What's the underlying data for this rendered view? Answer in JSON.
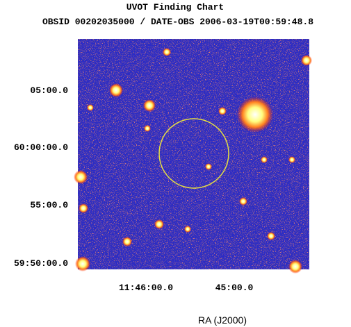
{
  "header": {
    "title": "UVOT Finding Chart",
    "subtitle": "OBSID 00202035000 / DATE-OBS 2006-03-19T00:59:48.8"
  },
  "axes": {
    "y_labels": [
      "05:00.0",
      "60:00:00.0",
      "55:00.0",
      "59:50:00.0"
    ],
    "x_labels": [
      "11:46:00.0",
      "45:00.0"
    ],
    "x_title": "RA (J2000)"
  }
}
